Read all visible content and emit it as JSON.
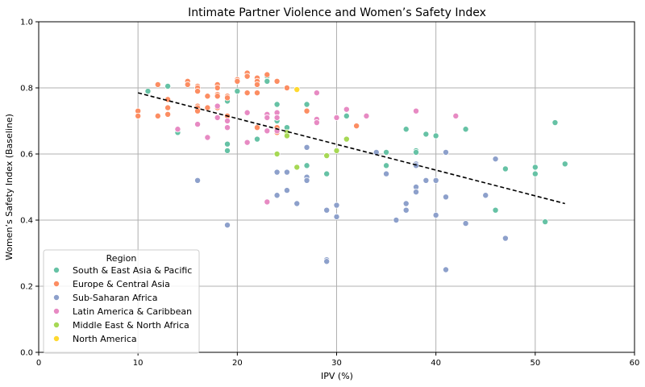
{
  "chart_data": {
    "type": "scatter",
    "title": "Intimate Partner Violence and Women’s Safety Index",
    "xlabel": "IPV (%)",
    "ylabel": "Women’s Safety Index (Baseline)",
    "xlim": [
      0,
      60
    ],
    "ylim": [
      0,
      1.0
    ],
    "x_ticks": [
      "0",
      "10",
      "20",
      "30",
      "40",
      "50",
      "60"
    ],
    "y_ticks": [
      "0.0",
      "0.2",
      "0.4",
      "0.6",
      "0.8",
      "1.0"
    ],
    "grid": true,
    "legend_title": "Region",
    "legend_position": "lower-left",
    "trendline": {
      "x": [
        10,
        53
      ],
      "y": [
        0.785,
        0.45
      ],
      "color": "#000000",
      "style": "dashed"
    },
    "series": [
      {
        "name": "South & East Asia & Pacific",
        "color": "#66c2a5",
        "points": [
          [
            11,
            0.79
          ],
          [
            13,
            0.805
          ],
          [
            14,
            0.665
          ],
          [
            19,
            0.76
          ],
          [
            19,
            0.68
          ],
          [
            19,
            0.63
          ],
          [
            19,
            0.61
          ],
          [
            20,
            0.79
          ],
          [
            22,
            0.68
          ],
          [
            22,
            0.645
          ],
          [
            23,
            0.835
          ],
          [
            23,
            0.82
          ],
          [
            24,
            0.75
          ],
          [
            24,
            0.7
          ],
          [
            25,
            0.68
          ],
          [
            27,
            0.75
          ],
          [
            27,
            0.565
          ],
          [
            29,
            0.54
          ],
          [
            31,
            0.715
          ],
          [
            35,
            0.605
          ],
          [
            35,
            0.565
          ],
          [
            37,
            0.675
          ],
          [
            38,
            0.61
          ],
          [
            38,
            0.605
          ],
          [
            39,
            0.66
          ],
          [
            40,
            0.655
          ],
          [
            43,
            0.675
          ],
          [
            46,
            0.43
          ],
          [
            47,
            0.555
          ],
          [
            50,
            0.56
          ],
          [
            50,
            0.54
          ],
          [
            51,
            0.395
          ],
          [
            52,
            0.695
          ],
          [
            53,
            0.57
          ]
        ]
      },
      {
        "name": "Europe & Central Asia",
        "color": "#fc8d62",
        "points": [
          [
            10,
            0.73
          ],
          [
            10,
            0.715
          ],
          [
            12,
            0.81
          ],
          [
            12,
            0.715
          ],
          [
            13,
            0.765
          ],
          [
            13,
            0.74
          ],
          [
            13,
            0.72
          ],
          [
            15,
            0.82
          ],
          [
            15,
            0.81
          ],
          [
            16,
            0.805
          ],
          [
            16,
            0.8
          ],
          [
            16,
            0.79
          ],
          [
            16,
            0.745
          ],
          [
            16,
            0.74
          ],
          [
            16,
            0.73
          ],
          [
            17,
            0.775
          ],
          [
            17,
            0.74
          ],
          [
            18,
            0.81
          ],
          [
            18,
            0.8
          ],
          [
            18,
            0.78
          ],
          [
            18,
            0.775
          ],
          [
            18,
            0.74
          ],
          [
            19,
            0.775
          ],
          [
            19,
            0.77
          ],
          [
            19,
            0.715
          ],
          [
            20,
            0.825
          ],
          [
            20,
            0.82
          ],
          [
            21,
            0.845
          ],
          [
            21,
            0.835
          ],
          [
            21,
            0.785
          ],
          [
            22,
            0.83
          ],
          [
            22,
            0.82
          ],
          [
            22,
            0.81
          ],
          [
            22,
            0.785
          ],
          [
            22,
            0.68
          ],
          [
            23,
            0.84
          ],
          [
            23,
            0.71
          ],
          [
            24,
            0.82
          ],
          [
            24,
            0.68
          ],
          [
            24,
            0.665
          ],
          [
            25,
            0.8
          ],
          [
            27,
            0.73
          ],
          [
            32,
            0.685
          ]
        ]
      },
      {
        "name": "Sub-Saharan Africa",
        "color": "#8da0cb",
        "points": [
          [
            16,
            0.52
          ],
          [
            19,
            0.385
          ],
          [
            24,
            0.545
          ],
          [
            24,
            0.475
          ],
          [
            25,
            0.545
          ],
          [
            25,
            0.49
          ],
          [
            26,
            0.45
          ],
          [
            27,
            0.62
          ],
          [
            27,
            0.53
          ],
          [
            27,
            0.52
          ],
          [
            29,
            0.43
          ],
          [
            29,
            0.28
          ],
          [
            29,
            0.275
          ],
          [
            30,
            0.445
          ],
          [
            30,
            0.41
          ],
          [
            34,
            0.605
          ],
          [
            35,
            0.54
          ],
          [
            36,
            0.4
          ],
          [
            37,
            0.45
          ],
          [
            37,
            0.43
          ],
          [
            38,
            0.57
          ],
          [
            38,
            0.565
          ],
          [
            38,
            0.5
          ],
          [
            38,
            0.485
          ],
          [
            39,
            0.52
          ],
          [
            40,
            0.52
          ],
          [
            40,
            0.415
          ],
          [
            41,
            0.605
          ],
          [
            41,
            0.47
          ],
          [
            41,
            0.25
          ],
          [
            43,
            0.39
          ],
          [
            45,
            0.475
          ],
          [
            46,
            0.585
          ],
          [
            47,
            0.345
          ]
        ]
      },
      {
        "name": "Latin America & Caribbean",
        "color": "#e78ac3",
        "points": [
          [
            14,
            0.675
          ],
          [
            16,
            0.69
          ],
          [
            17,
            0.65
          ],
          [
            18,
            0.745
          ],
          [
            18,
            0.71
          ],
          [
            19,
            0.7
          ],
          [
            19,
            0.68
          ],
          [
            21,
            0.725
          ],
          [
            21,
            0.635
          ],
          [
            23,
            0.72
          ],
          [
            23,
            0.71
          ],
          [
            23,
            0.67
          ],
          [
            23,
            0.455
          ],
          [
            24,
            0.725
          ],
          [
            24,
            0.71
          ],
          [
            24,
            0.67
          ],
          [
            28,
            0.785
          ],
          [
            28,
            0.705
          ],
          [
            28,
            0.695
          ],
          [
            30,
            0.71
          ],
          [
            31,
            0.735
          ],
          [
            33,
            0.715
          ],
          [
            38,
            0.73
          ],
          [
            42,
            0.715
          ]
        ]
      },
      {
        "name": "Middle East & North Africa",
        "color": "#a6d854",
        "points": [
          [
            24,
            0.6
          ],
          [
            25,
            0.665
          ],
          [
            25,
            0.655
          ],
          [
            26,
            0.56
          ],
          [
            29,
            0.595
          ],
          [
            30,
            0.61
          ],
          [
            31,
            0.645
          ]
        ]
      },
      {
        "name": "North America",
        "color": "#ffd92f",
        "points": [
          [
            26,
            0.795
          ]
        ]
      }
    ]
  }
}
